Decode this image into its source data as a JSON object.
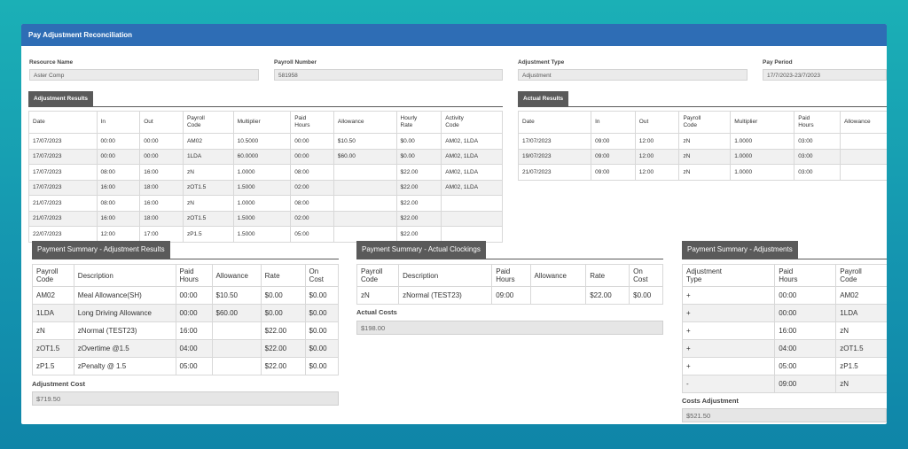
{
  "window": {
    "title": "Pay Adjustment Reconciliation"
  },
  "fields": {
    "resource_name": {
      "label": "Resource Name",
      "value": "Aster Comp"
    },
    "payroll_number": {
      "label": "Payroll Number",
      "value": "581958"
    },
    "adjustment_type": {
      "label": "Adjustment Type",
      "value": "Adjustment"
    },
    "pay_period": {
      "label": "Pay Period",
      "value": "17/7/2023-23/7/2023"
    }
  },
  "adjustment_results": {
    "tab": "Adjustment Results",
    "headers": [
      "Date",
      "In",
      "Out",
      "Payroll\nCode",
      "Multiplier",
      "Paid\nHours",
      "Allowance",
      "Hourly\nRate",
      "Activity\nCode"
    ],
    "rows": [
      [
        "17/07/2023",
        "00:00",
        "00:00",
        "AM02",
        "10.5000",
        "00:00",
        "$10.50",
        "$0.00",
        "AM02, 1LDA"
      ],
      [
        "17/07/2023",
        "00:00",
        "00:00",
        "1LDA",
        "60.0000",
        "00:00",
        "$60.00",
        "$0.00",
        "AM02, 1LDA"
      ],
      [
        "17/07/2023",
        "08:00",
        "16:00",
        "zN",
        "1.0000",
        "08:00",
        "",
        "$22.00",
        "AM02, 1LDA"
      ],
      [
        "17/07/2023",
        "16:00",
        "18:00",
        "zOT1.5",
        "1.5000",
        "02:00",
        "",
        "$22.00",
        "AM02, 1LDA"
      ],
      [
        "21/07/2023",
        "08:00",
        "16:00",
        "zN",
        "1.0000",
        "08:00",
        "",
        "$22.00",
        ""
      ],
      [
        "21/07/2023",
        "16:00",
        "18:00",
        "zOT1.5",
        "1.5000",
        "02:00",
        "",
        "$22.00",
        ""
      ],
      [
        "22/07/2023",
        "12:00",
        "17:00",
        "zP1.5",
        "1.5000",
        "05:00",
        "",
        "$22.00",
        ""
      ]
    ]
  },
  "actual_results": {
    "tab": "Actual Results",
    "headers": [
      "Date",
      "In",
      "Out",
      "Payroll\nCode",
      "Multiplier",
      "Paid\nHours",
      "Allowance"
    ],
    "rows": [
      [
        "17/07/2023",
        "09:00",
        "12:00",
        "zN",
        "1.0000",
        "03:00",
        ""
      ],
      [
        "19/07/2023",
        "09:00",
        "12:00",
        "zN",
        "1.0000",
        "03:00",
        ""
      ],
      [
        "21/07/2023",
        "09:00",
        "12:00",
        "zN",
        "1.0000",
        "03:00",
        ""
      ]
    ]
  },
  "summary_adjustment": {
    "tab": "Payment Summary - Adjustment Results",
    "headers": [
      "Payroll\nCode",
      "Description",
      "Paid\nHours",
      "Allowance",
      "Rate",
      "On\nCost"
    ],
    "rows": [
      [
        "AM02",
        "Meal Allowance(SH)",
        "00:00",
        "$10.50",
        "$0.00",
        "$0.00"
      ],
      [
        "1LDA",
        "Long Driving Allowance",
        "00:00",
        "$60.00",
        "$0.00",
        "$0.00"
      ],
      [
        "zN",
        "zNormal (TEST23)",
        "16:00",
        "",
        "$22.00",
        "$0.00"
      ],
      [
        "zOT1.5",
        "zOvertime @1.5",
        "04:00",
        "",
        "$22.00",
        "$0.00"
      ],
      [
        "zP1.5",
        "zPenalty @ 1.5",
        "05:00",
        "",
        "$22.00",
        "$0.00"
      ]
    ],
    "total_label": "Adjustment Cost",
    "total_value": "$719.50"
  },
  "summary_actual": {
    "tab": "Payment Summary - Actual Clockings",
    "headers": [
      "Payroll\nCode",
      "Description",
      "Paid\nHours",
      "Allowance",
      "Rate",
      "On\nCost"
    ],
    "rows": [
      [
        "zN",
        "zNormal (TEST23)",
        "09:00",
        "",
        "$22.00",
        "$0.00"
      ]
    ],
    "total_label": "Actual Costs",
    "total_value": "$198.00"
  },
  "summary_adjustments": {
    "tab": "Payment Summary - Adjustments",
    "headers": [
      "Adjustment\nType",
      "Paid\nHours",
      "Payroll\nCode"
    ],
    "rows": [
      [
        "+",
        "00:00",
        "AM02"
      ],
      [
        "+",
        "00:00",
        "1LDA"
      ],
      [
        "+",
        "16:00",
        "zN"
      ],
      [
        "+",
        "04:00",
        "zOT1.5"
      ],
      [
        "+",
        "05:00",
        "zP1.5"
      ],
      [
        "-",
        "09:00",
        "zN"
      ]
    ],
    "total_label": "Costs Adjustment",
    "total_value": "$521.50"
  }
}
